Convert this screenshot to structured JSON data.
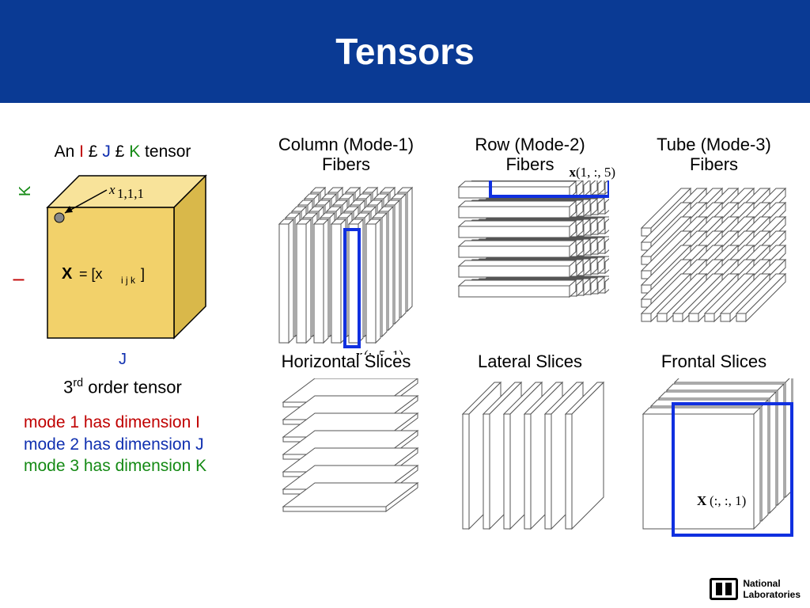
{
  "slide": {
    "title": "Tensors",
    "title_bar_color": "#0a3a94",
    "background": "#ffffff"
  },
  "tensor_cube": {
    "caption_prefix": "An ",
    "dims": {
      "I": "I",
      "J": "J",
      "K": "K"
    },
    "caption_suffix": " tensor",
    "times_symbol": "£",
    "element_label": "x₁,₁,₁",
    "body_label": "X  =  [xᵢⱼₖ]",
    "face_color": "#f2d16a",
    "top_color": "#f8e39a",
    "side_color": "#d9b84a",
    "stroke": "#000000",
    "pointer_dot_color": "#888888",
    "axis_labels": {
      "I": "I",
      "J": "J",
      "K": "K"
    }
  },
  "order_caption": "3rd order tensor",
  "modes": {
    "line1": "mode 1 has dimension I",
    "line2": "mode 2 has dimension J",
    "line3": "mode 3 has dimension K",
    "colors": {
      "m1": "#c00000",
      "m2": "#1030b0",
      "m3": "#158a15"
    }
  },
  "figures": {
    "fiber_stroke": "#555555",
    "fiber_fill": "#ffffff",
    "highlight_color": "#1030e0",
    "col1": {
      "label": "Column (Mode-1)\nFibers",
      "annot": "x(:, 5, 1)"
    },
    "col2": {
      "label": "Row (Mode-2)\nFibers",
      "annot": "x(1, :, 5)"
    },
    "col3": {
      "label": "Tube (Mode-3)\nFibers"
    },
    "row2_col1": {
      "label": "Horizontal Slices"
    },
    "row2_col2": {
      "label": "Lateral Slices"
    },
    "row2_col3": {
      "label": "Frontal Slices",
      "annot": "X(:, :, 1)"
    }
  },
  "logo": {
    "line1": "National",
    "line2": "Laboratories"
  }
}
